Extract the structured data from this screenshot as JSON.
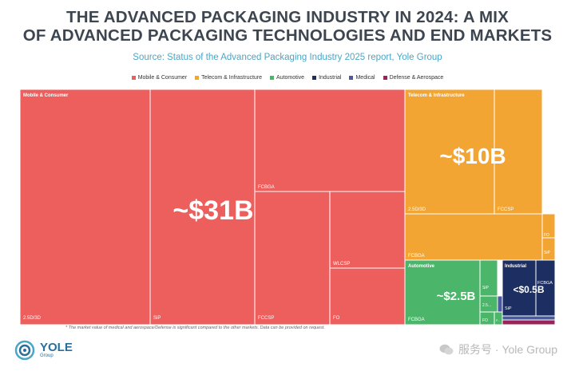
{
  "title": {
    "line1": "THE ADVANCED PACKAGING INDUSTRY IN 2024: A MIX",
    "line2": "OF ADVANCED PACKAGING TECHNOLOGIES AND END MARKETS"
  },
  "subtitle": "Source: Status of the Advanced Packaging Industry 2025 report, Yole Group",
  "colors": {
    "mobile": "#ec5f5d",
    "telecom": "#f3a533",
    "automotive": "#4bb56a",
    "industrial": "#1d2f62",
    "medical": "#4a5aa0",
    "defense": "#9a2457"
  },
  "legend": [
    {
      "label": "Mobile & Consumer",
      "key": "mobile"
    },
    {
      "label": "Telecom & Infrastructure",
      "key": "telecom"
    },
    {
      "label": "Automotive",
      "key": "automotive"
    },
    {
      "label": "Industrial",
      "key": "industrial"
    },
    {
      "label": "Medical",
      "key": "medical"
    },
    {
      "label": "Defense & Aerospace",
      "key": "defense"
    }
  ],
  "chart_data": {
    "type": "treemap",
    "title": "THE ADVANCED PACKAGING INDUSTRY IN 2024: A MIX OF ADVANCED PACKAGING TECHNOLOGIES AND END MARKETS",
    "groups": [
      {
        "name": "Mobile & Consumer",
        "key": "mobile",
        "value_label": "~$31B",
        "segments": [
          "2.5D/3D",
          "SiP",
          "FCBGA",
          "FCCSP",
          "WLCSP",
          "FO"
        ]
      },
      {
        "name": "Telecom & Infrastructure",
        "key": "telecom",
        "value_label": "~$10B",
        "segments": [
          "2.5D/3D",
          "FCCSP",
          "FCBGA",
          "FO",
          "SiP"
        ]
      },
      {
        "name": "Automotive",
        "key": "automotive",
        "value_label": "~$2.5B",
        "segments": [
          "FCBGA",
          "SiP",
          "2.5...",
          "FO",
          "F..."
        ]
      },
      {
        "name": "Industrial",
        "key": "industrial",
        "value_label": "<$0.5B",
        "segments": [
          "SiP",
          "FCBGA"
        ]
      },
      {
        "name": "Medical",
        "key": "medical",
        "value_label": ""
      },
      {
        "name": "Defense & Aerospace",
        "key": "defense",
        "value_label": ""
      }
    ]
  },
  "footnote": "* The market value of medical and aerospace/Defense is significant compared to the other markets. Data can be provided on request.",
  "logo": {
    "name": "YOLE",
    "sub": "Group"
  },
  "watermark": "服务号 · Yole Group"
}
